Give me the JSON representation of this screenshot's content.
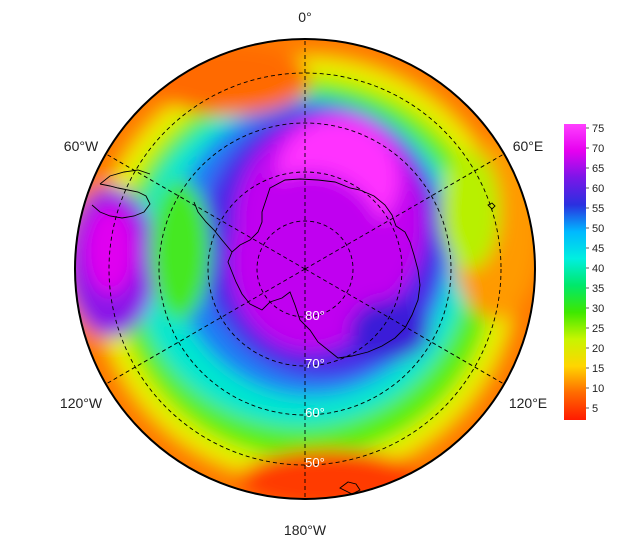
{
  "map": {
    "projection": "south-polar-stereographic",
    "longitude_labels": [
      {
        "text": "0°",
        "lon": 0
      },
      {
        "text": "60°E",
        "lon": 60
      },
      {
        "text": "120°E",
        "lon": 120
      },
      {
        "text": "180°W",
        "lon": 180
      },
      {
        "text": "120°W",
        "lon": -120
      },
      {
        "text": "60°W",
        "lon": -60
      }
    ],
    "latitude_labels": [
      {
        "text": "80°",
        "lat": -80
      },
      {
        "text": "70°",
        "lat": -70
      },
      {
        "text": "60°",
        "lat": -60
      },
      {
        "text": "50°",
        "lat": -50
      }
    ],
    "graticule": {
      "style": "dashed",
      "color": "#000000"
    }
  },
  "colorbar": {
    "ticks": [
      5,
      10,
      15,
      20,
      25,
      30,
      35,
      40,
      45,
      50,
      55,
      60,
      65,
      70,
      75
    ],
    "range": [
      2,
      76
    ],
    "colors": [
      "#ff1a00",
      "#ff6a00",
      "#ffd500",
      "#c8f500",
      "#3ee800",
      "#00e86a",
      "#00efe0",
      "#00b8ff",
      "#2a30e0",
      "#7a16e8",
      "#e600f0",
      "#ff40ff"
    ]
  }
}
